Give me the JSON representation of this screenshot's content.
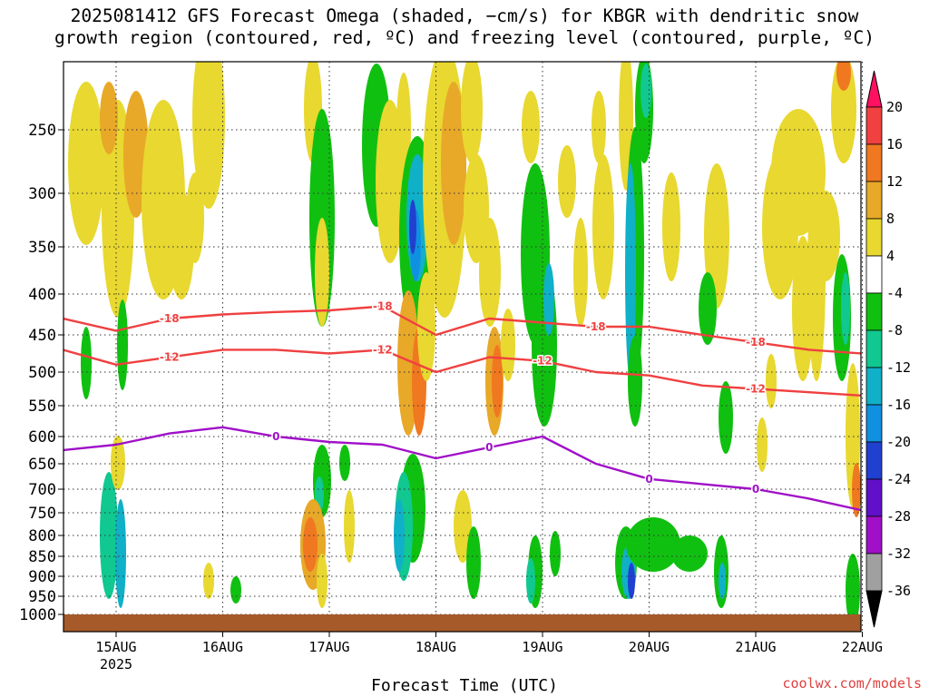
{
  "chart_data": {
    "type": "heatmap",
    "title": {
      "line1": "2025081412 GFS Forecast Omega (shaded, −cm/s) for KBGR with dendritic snow",
      "line2": "growth region (contoured, red, ºC) and freezing level (contoured, purple, ºC)"
    },
    "xlabel": "Forecast Time (UTC)",
    "credit": "coolwx.com/models",
    "x_ticks": [
      "15AUG",
      "16AUG",
      "17AUG",
      "18AUG",
      "19AUG",
      "20AUG",
      "21AUG",
      "22AUG"
    ],
    "x_year": "2025",
    "y_ticks": [
      "250",
      "300",
      "350",
      "400",
      "450",
      "500",
      "550",
      "600",
      "650",
      "700",
      "750",
      "800",
      "850",
      "900",
      "950",
      "1000"
    ],
    "colorbar": {
      "labels": [
        "20",
        "16",
        "12",
        "8",
        "4",
        "-4",
        "-8",
        "-12",
        "-16",
        "-20",
        "-24",
        "-28",
        "-32",
        "-36"
      ],
      "colors": [
        "#ff1060",
        "#f04040",
        "#f07820",
        "#e8a828",
        "#e8d830",
        "#ffffff",
        "#10c010",
        "#10c890",
        "#10b0c8",
        "#1090e0",
        "#2040d0",
        "#6010c8",
        "#a010c8",
        "#a0a0a0",
        "#000000"
      ]
    },
    "contours": {
      "freezing_level": {
        "label": "0",
        "color": "#a010c8",
        "x": [
          "14.5",
          "15.0",
          "15.5",
          "16.0",
          "16.5",
          "17.0",
          "17.5",
          "18.0",
          "18.5",
          "19.0",
          "19.5",
          "20.0",
          "20.5",
          "21.0",
          "21.5",
          "22.0"
        ],
        "y": [
          625,
          615,
          595,
          585,
          600,
          610,
          615,
          640,
          620,
          600,
          650,
          680,
          690,
          700,
          720,
          745
        ]
      },
      "dgz_minus12": {
        "label": "-12",
        "color": "#f04040",
        "x": [
          "14.5",
          "15.0",
          "15.5",
          "16.0",
          "16.5",
          "17.0",
          "17.5",
          "18.0",
          "18.5",
          "19.0",
          "19.5",
          "20.0",
          "20.5",
          "21.0",
          "21.5",
          "22.0"
        ],
        "y": [
          470,
          490,
          480,
          470,
          470,
          475,
          470,
          500,
          480,
          485,
          500,
          505,
          520,
          525,
          530,
          535
        ]
      },
      "dgz_minus18": {
        "label": "-18",
        "color": "#f04040",
        "x": [
          "14.5",
          "15.0",
          "15.5",
          "16.0",
          "16.5",
          "17.0",
          "17.5",
          "18.0",
          "18.5",
          "19.0",
          "19.5",
          "20.0",
          "20.5",
          "21.0",
          "21.5",
          "22.0"
        ],
        "y": [
          430,
          445,
          430,
          425,
          422,
          420,
          415,
          450,
          430,
          435,
          440,
          440,
          450,
          460,
          470,
          475
        ]
      }
    }
  }
}
